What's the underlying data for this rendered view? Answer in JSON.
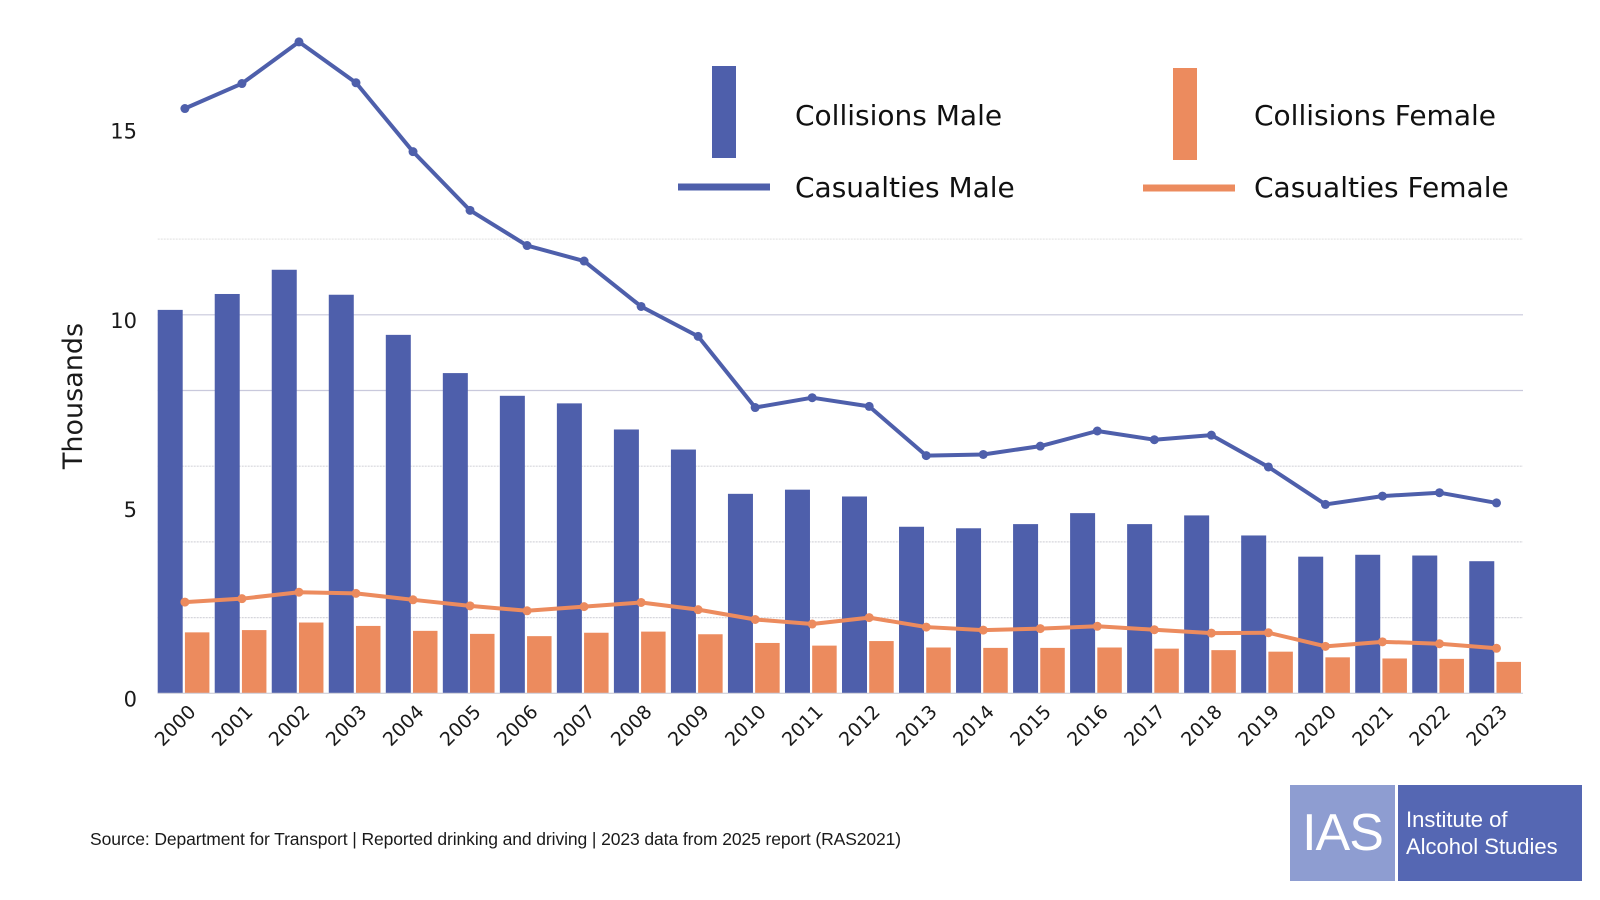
{
  "chart_data": {
    "type": "bar",
    "title": "",
    "xlabel": "",
    "ylabel": "Thousands",
    "ylim": [
      0,
      15
    ],
    "y_ticks": [
      0,
      5,
      10,
      15
    ],
    "y_gridlines": [
      2,
      4,
      6,
      8,
      10,
      12
    ],
    "grid": true,
    "legend_position": "top-right",
    "categories": [
      "2000",
      "2001",
      "2002",
      "2003",
      "2004",
      "2005",
      "2006",
      "2007",
      "2008",
      "2009",
      "2010",
      "2011",
      "2012",
      "2013",
      "2014",
      "2015",
      "2016",
      "2017",
      "2018",
      "2019",
      "2020",
      "2021",
      "2022",
      "2023"
    ],
    "series": [
      {
        "name": "Collisions Male",
        "kind": "bar",
        "color": "#4e5fab",
        "values": [
          10.13,
          10.55,
          11.19,
          10.53,
          9.47,
          8.46,
          7.86,
          7.66,
          6.97,
          6.44,
          5.27,
          5.38,
          5.2,
          4.4,
          4.36,
          4.47,
          4.76,
          4.47,
          4.7,
          4.17,
          3.61,
          3.66,
          3.64,
          3.49
        ]
      },
      {
        "name": "Collisions Female",
        "kind": "bar",
        "color": "#ec8b5e",
        "values": [
          1.61,
          1.67,
          1.87,
          1.78,
          1.65,
          1.57,
          1.51,
          1.6,
          1.63,
          1.56,
          1.33,
          1.26,
          1.38,
          1.21,
          1.2,
          1.2,
          1.21,
          1.18,
          1.14,
          1.1,
          0.95,
          0.92,
          0.91,
          0.83
        ]
      },
      {
        "name": "Casualties Male",
        "kind": "line",
        "color": "#4e5fab",
        "values": [
          15.45,
          16.11,
          17.21,
          16.13,
          14.31,
          12.76,
          11.83,
          11.42,
          10.22,
          9.43,
          7.55,
          7.81,
          7.58,
          6.28,
          6.31,
          6.53,
          6.93,
          6.7,
          6.82,
          5.98,
          4.99,
          5.21,
          5.3,
          5.03
        ]
      },
      {
        "name": "Casualties Female",
        "kind": "line",
        "color": "#ec8b5e",
        "values": [
          2.41,
          2.5,
          2.67,
          2.64,
          2.47,
          2.31,
          2.18,
          2.29,
          2.4,
          2.21,
          1.95,
          1.83,
          2.0,
          1.75,
          1.67,
          1.71,
          1.77,
          1.68,
          1.59,
          1.6,
          1.24,
          1.36,
          1.31,
          1.19
        ]
      }
    ],
    "legend": [
      {
        "label": "Collisions Male",
        "symbol": "bar",
        "color": "#4e5fab"
      },
      {
        "label": "Collisions Female",
        "symbol": "bar",
        "color": "#ec8b5e"
      },
      {
        "label": "Casualties Male",
        "symbol": "line",
        "color": "#4e5fab"
      },
      {
        "label": "Casualties Female",
        "symbol": "line",
        "color": "#ec8b5e"
      }
    ]
  },
  "footer": {
    "source": "Source: Department for Transport | Reported drinking and driving | 2023 data from 2025 report (RAS2021)"
  },
  "logo": {
    "mark": "IAS",
    "name_line1": "Institute of",
    "name_line2": "Alcohol Studies"
  }
}
